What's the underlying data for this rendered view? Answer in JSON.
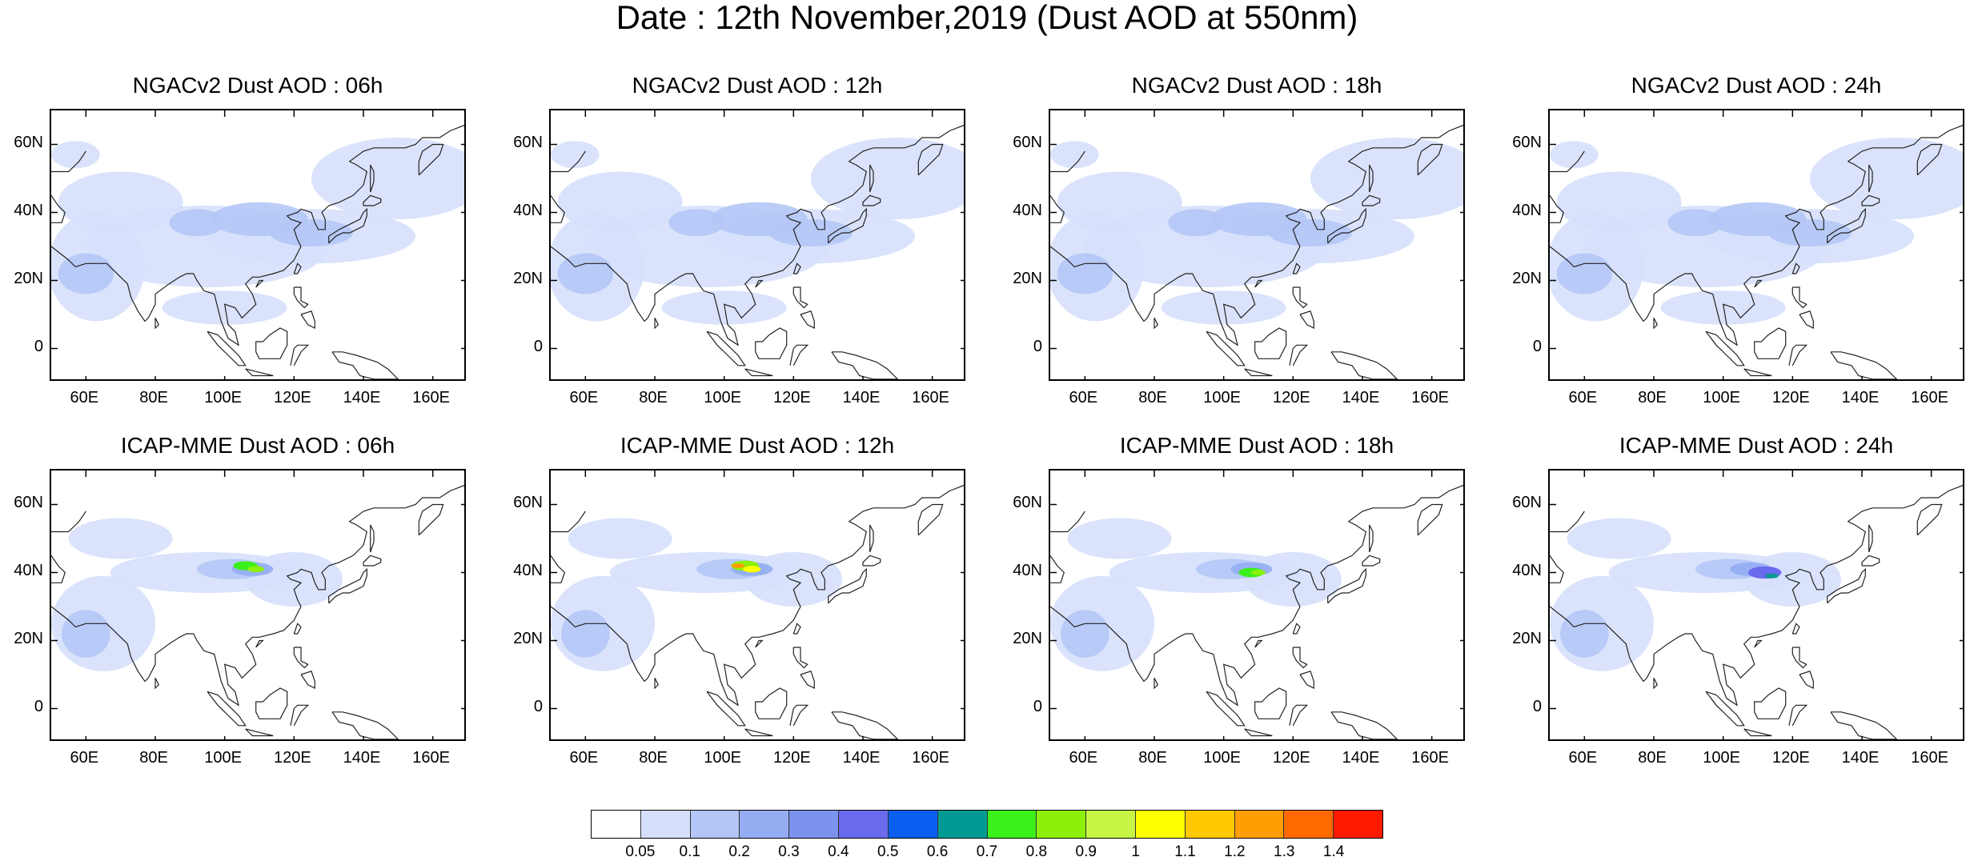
{
  "title": "Date : 12th November,2019 (Dust AOD at 550nm)",
  "panels": [
    {
      "title": "NGACv2 Dust AOD : 06h",
      "model": "NGACv2"
    },
    {
      "title": "NGACv2 Dust AOD : 12h",
      "model": "NGACv2"
    },
    {
      "title": "NGACv2 Dust AOD : 18h",
      "model": "NGACv2"
    },
    {
      "title": "NGACv2 Dust AOD : 24h",
      "model": "NGACv2"
    },
    {
      "title": "ICAP-MME Dust AOD : 06h",
      "model": "ICAP-MME"
    },
    {
      "title": "ICAP-MME Dust AOD : 12h",
      "model": "ICAP-MME"
    },
    {
      "title": "ICAP-MME Dust AOD : 18h",
      "model": "ICAP-MME"
    },
    {
      "title": "ICAP-MME Dust AOD : 24h",
      "model": "ICAP-MME"
    }
  ],
  "lon_ticks": [
    "60E",
    "80E",
    "100E",
    "120E",
    "140E",
    "160E"
  ],
  "lat_ticks": [
    "60N",
    "40N",
    "20N",
    "0"
  ],
  "map_extent": {
    "lon": [
      50,
      170
    ],
    "lat": [
      -10,
      70
    ]
  },
  "colorbar": {
    "colors": [
      "#ffffff",
      "#d6e0fb",
      "#b4c6f6",
      "#94adf2",
      "#7b92ef",
      "#6a6aee",
      "#0b5ff0",
      "#009a92",
      "#3cf01a",
      "#8cf00a",
      "#c6f545",
      "#ffff00",
      "#ffc800",
      "#ff9e00",
      "#ff6a00",
      "#ff1a00"
    ],
    "labels": [
      "0.05",
      "0.1",
      "0.2",
      "0.3",
      "0.4",
      "0.5",
      "0.6",
      "0.7",
      "0.8",
      "0.9",
      "1",
      "1.1",
      "1.2",
      "1.3",
      "1.4"
    ]
  }
}
